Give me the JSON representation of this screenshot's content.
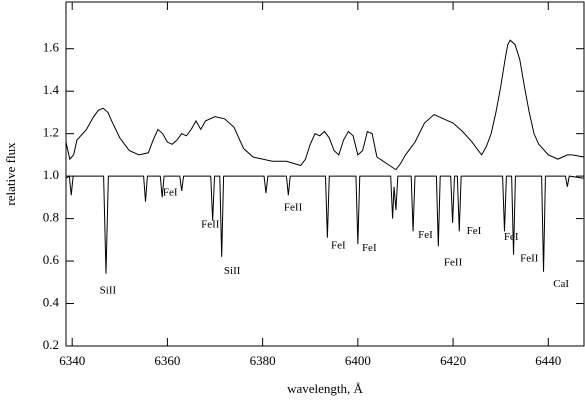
{
  "chart_data": {
    "type": "line",
    "x_label": "wavelength, Å",
    "y_label": "relative flux",
    "xlim": [
      6338.7,
      6447.5
    ],
    "ylim": [
      0.2,
      1.82
    ],
    "xticks": [
      6340,
      6360,
      6380,
      6400,
      6420,
      6440
    ],
    "yticks": [
      0.2,
      0.4,
      0.6,
      0.8,
      {
        "value": 1,
        "label": "1.0"
      },
      1.2,
      1.4,
      1.6
    ],
    "series": [
      {
        "color": "#000000",
        "x": [
          6338.7,
          6339.5,
          6340.3,
          6341,
          6343,
          6344.5,
          6345.5,
          6346.5,
          6347.5,
          6348.5,
          6350,
          6352,
          6354,
          6356,
          6357,
          6358,
          6359,
          6360,
          6361,
          6362,
          6363,
          6364,
          6365,
          6366,
          6367,
          6368,
          6370,
          6372,
          6374,
          6375,
          6376,
          6378,
          6380,
          6382,
          6385,
          6388,
          6389,
          6390,
          6391,
          6392,
          6393,
          6394,
          6395,
          6396,
          6397,
          6398,
          6399,
          6400,
          6401,
          6402,
          6403,
          6404,
          6406,
          6408,
          6409,
          6410,
          6411,
          6412,
          6414,
          6416,
          6418,
          6420,
          6422,
          6424,
          6425,
          6426,
          6427,
          6428,
          6429,
          6430,
          6431,
          6431.5,
          6432,
          6433,
          6434,
          6435,
          6436,
          6437,
          6438,
          6440,
          6442,
          6444,
          6445,
          6447.5
        ],
        "values": [
          1.16,
          1.08,
          1.1,
          1.17,
          1.22,
          1.28,
          1.31,
          1.32,
          1.3,
          1.25,
          1.18,
          1.12,
          1.1,
          1.11,
          1.17,
          1.22,
          1.2,
          1.16,
          1.15,
          1.17,
          1.2,
          1.19,
          1.22,
          1.26,
          1.22,
          1.26,
          1.28,
          1.27,
          1.23,
          1.18,
          1.13,
          1.09,
          1.08,
          1.07,
          1.07,
          1.05,
          1.08,
          1.15,
          1.2,
          1.19,
          1.21,
          1.18,
          1.12,
          1.1,
          1.17,
          1.21,
          1.19,
          1.1,
          1.12,
          1.21,
          1.2,
          1.09,
          1.06,
          1.03,
          1.06,
          1.1,
          1.13,
          1.16,
          1.25,
          1.29,
          1.27,
          1.25,
          1.21,
          1.16,
          1.13,
          1.1,
          1.14,
          1.2,
          1.3,
          1.42,
          1.56,
          1.62,
          1.64,
          1.62,
          1.55,
          1.42,
          1.3,
          1.2,
          1.15,
          1.1,
          1.08,
          1.1,
          1.1,
          1.09
        ]
      },
      {
        "color": "#000000",
        "x": [
          6338.7,
          6339.4,
          6339.8,
          6340.2,
          6346.6,
          6347.1,
          6347.6,
          6355,
          6355.4,
          6355.8,
          6358.5,
          6358.9,
          6359.3,
          6362.6,
          6363,
          6363.4,
          6369.1,
          6369.5,
          6369.9,
          6371,
          6371.4,
          6371.8,
          6380.3,
          6380.7,
          6381.1,
          6385,
          6385.4,
          6385.8,
          6393.2,
          6393.6,
          6394,
          6399.6,
          6400,
          6400.4,
          6406.9,
          6407.3,
          6407.6,
          6408,
          6408.4,
          6411.2,
          6411.6,
          6412,
          6416.5,
          6416.9,
          6417.3,
          6419.5,
          6419.9,
          6420.3,
          6420.9,
          6421.3,
          6421.7,
          6430.4,
          6430.8,
          6431.2,
          6432.3,
          6432.7,
          6433.1,
          6438.6,
          6439,
          6439.4,
          6443.6,
          6444,
          6444.4,
          6447.5
        ],
        "values": [
          0.99,
          1.0,
          0.91,
          1.0,
          1.0,
          0.54,
          1.0,
          1.0,
          0.88,
          1.0,
          1.0,
          0.9,
          1.0,
          1.0,
          0.93,
          1.0,
          1.0,
          0.79,
          1.0,
          1.0,
          0.62,
          1.0,
          1.0,
          0.92,
          1.0,
          1.0,
          0.91,
          1.0,
          1.0,
          0.71,
          1.0,
          1.0,
          0.68,
          1.0,
          1.0,
          0.8,
          0.95,
          0.84,
          1.0,
          1.0,
          0.74,
          1.0,
          1.0,
          0.67,
          1.0,
          1.0,
          0.78,
          1.0,
          1.0,
          0.74,
          1.0,
          1.0,
          0.74,
          1.0,
          1.0,
          0.63,
          1.0,
          1.0,
          0.55,
          1.0,
          1.0,
          0.95,
          1.0,
          0.99
        ]
      }
    ],
    "annotations": [
      {
        "text": "SiII",
        "x": 6347.5,
        "y": 0.46
      },
      {
        "text": "FeI",
        "x": 6360.6,
        "y": 0.92
      },
      {
        "text": "FeII",
        "x": 6369,
        "y": 0.77
      },
      {
        "text": "SiII",
        "x": 6373.6,
        "y": 0.55
      },
      {
        "text": "FeII",
        "x": 6386.4,
        "y": 0.85
      },
      {
        "text": "FeI",
        "x": 6395.9,
        "y": 0.67
      },
      {
        "text": "FeI",
        "x": 6402.4,
        "y": 0.66
      },
      {
        "text": "FeI",
        "x": 6414.2,
        "y": 0.72
      },
      {
        "text": "FeII",
        "x": 6420,
        "y": 0.59
      },
      {
        "text": "FeI",
        "x": 6424.4,
        "y": 0.74
      },
      {
        "text": "FeI",
        "x": 6432.2,
        "y": 0.71
      },
      {
        "text": "FeII",
        "x": 6436,
        "y": 0.61
      },
      {
        "text": "CaI",
        "x": 6442.7,
        "y": 0.49
      }
    ]
  }
}
